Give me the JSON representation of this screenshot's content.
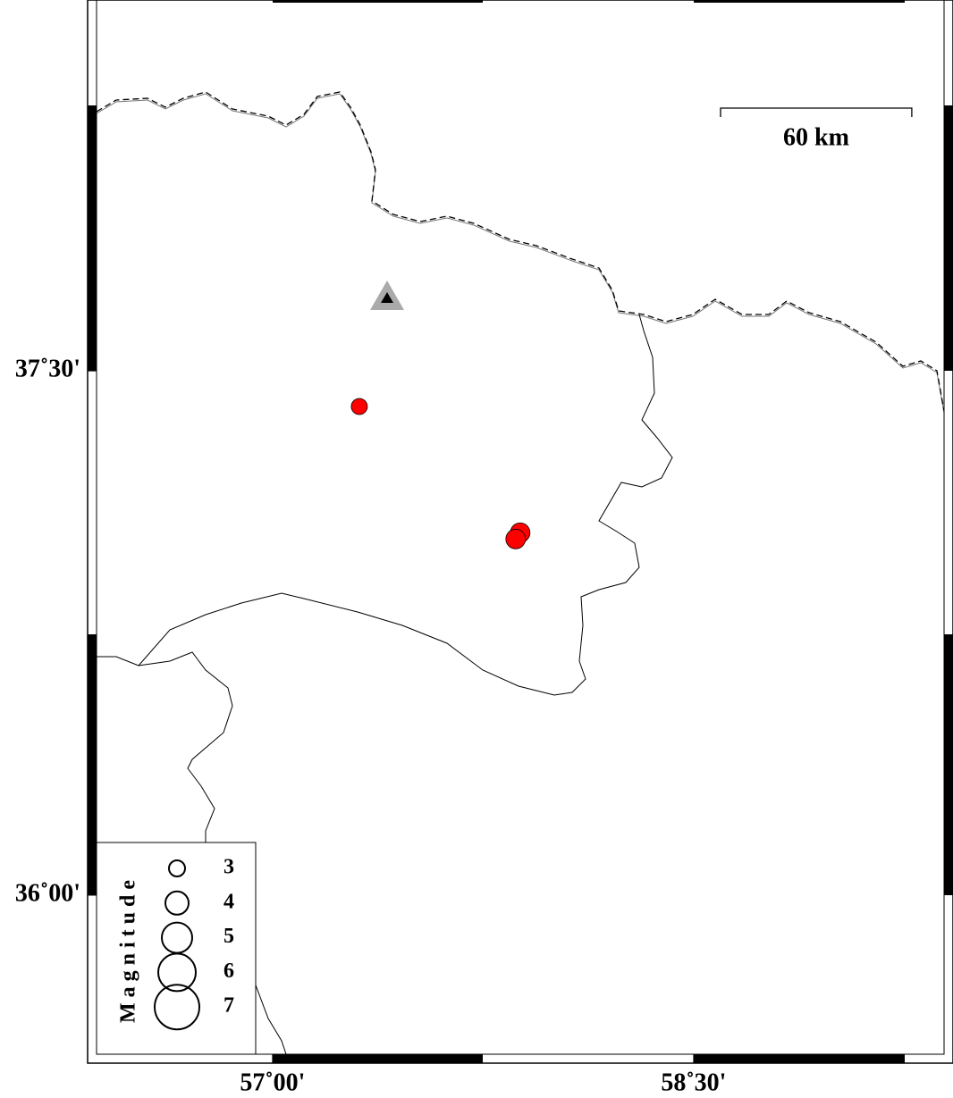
{
  "map": {
    "lonlim": [
      56.373,
      59.392
    ],
    "latlim": [
      35.545,
      38.561
    ],
    "xticks": [
      {
        "value": 57,
        "label": "57˚00'"
      },
      {
        "value": 58.5,
        "label": "58˚30'"
      }
    ],
    "yticks": [
      {
        "value": 37.5,
        "label": "37˚30'"
      },
      {
        "value": 36,
        "label": "36˚00'"
      }
    ],
    "scale": {
      "value": 60,
      "label": "60 km"
    },
    "station": {
      "lon": 57.408,
      "lat": 37.71
    },
    "events": [
      {
        "lon": 57.309,
        "lat": 37.398,
        "magnitude": 3
      },
      {
        "lon": 57.882,
        "lat": 37.037,
        "magnitude": 3.5
      },
      {
        "lon": 57.866,
        "lat": 37.019,
        "magnitude": 3.5
      }
    ],
    "event_color": "#ff0000",
    "legend": {
      "title": "Magnitude",
      "magnitudes": [
        3,
        4,
        5,
        6,
        7
      ]
    }
  }
}
